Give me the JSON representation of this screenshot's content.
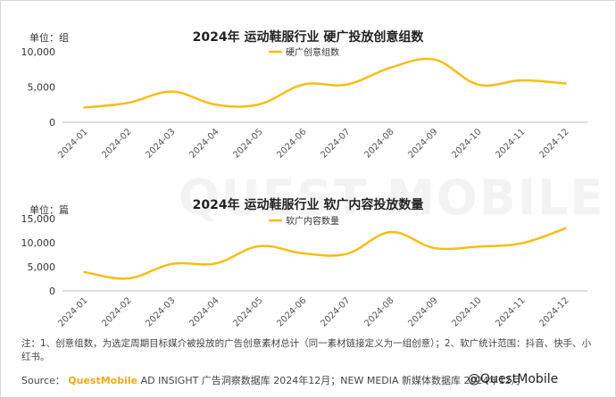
{
  "watermark": "QUEST MOBILE",
  "chart_data": [
    {
      "type": "line",
      "title": "2024年 运动鞋服行业 硬广投放创意组数",
      "unit_label": "单位：组",
      "categories": [
        "2024-01",
        "2024-02",
        "2024-03",
        "2024-04",
        "2024-05",
        "2024-06",
        "2024-07",
        "2024-08",
        "2024-09",
        "2024-10",
        "2024-11",
        "2024-12"
      ],
      "series": [
        {
          "name": "硬广创意组数",
          "color": "#f6bd16",
          "values": [
            2100,
            2750,
            4350,
            2500,
            2550,
            5350,
            5350,
            7750,
            8900,
            5350,
            5950,
            5500
          ]
        }
      ],
      "yticks": [
        0,
        5000,
        10000
      ],
      "ytick_labels": [
        "0",
        "5,000",
        "10,000"
      ],
      "ylim": [
        0,
        10000
      ],
      "legend_position": "top-center",
      "grid": false
    },
    {
      "type": "line",
      "title": "2024年 运动鞋服行业 软广内容投放数量",
      "unit_label": "单位：篇",
      "categories": [
        "2024-01",
        "2024-02",
        "2024-03",
        "2024-04",
        "2024-05",
        "2024-06",
        "2024-07",
        "2024-08",
        "2024-09",
        "2024-10",
        "2024-11",
        "2024-12"
      ],
      "series": [
        {
          "name": "软广内容数量",
          "color": "#f6bd16",
          "values": [
            3900,
            2600,
            5600,
            5700,
            9300,
            7800,
            7700,
            12200,
            8900,
            9200,
            9900,
            13000
          ]
        }
      ],
      "yticks": [
        0,
        5000,
        10000,
        15000
      ],
      "ytick_labels": [
        "0",
        "5,000",
        "10,000",
        "15,000"
      ],
      "ylim": [
        0,
        15000
      ],
      "legend_position": "top-center",
      "grid": false
    }
  ],
  "footer": {
    "note": "注：1、创意组数，为选定周期目标媒介被投放的广告创意素材总计（同一素材链接定义为一组创意）；2、软广统计范围：抖音、快手、小红书。",
    "source_label": "Source：",
    "source_brand": "QuestMobile",
    "source_text": "AD INSIGHT 广告洞察数据库 2024年12月；NEW MEDIA 新媒体数据库 2024年12月",
    "handle": "@QuestMobile"
  }
}
